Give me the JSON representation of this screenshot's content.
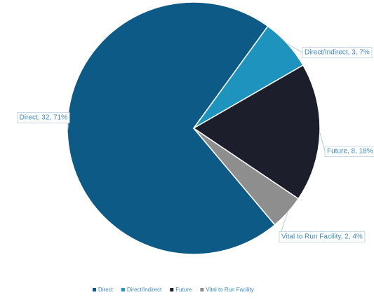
{
  "chart_data": {
    "type": "pie",
    "title": "",
    "categories": [
      "Direct",
      "Direct/Indirect",
      "Future",
      "Vital to Run Facility"
    ],
    "values": [
      32,
      3,
      8,
      2
    ],
    "percents": [
      71,
      7,
      18,
      4
    ],
    "colors": [
      "#0e5a86",
      "#1e93bd",
      "#1c1f2b",
      "#8e8e8e"
    ],
    "data_labels": [
      "Direct, 32, 71%",
      "Direct/Indirect, 3, 7%",
      "Future, 8, 18%",
      "Vital to Run Facility, 2, 4%"
    ],
    "label_color": "#3f89c4",
    "legend_position": "bottom"
  }
}
